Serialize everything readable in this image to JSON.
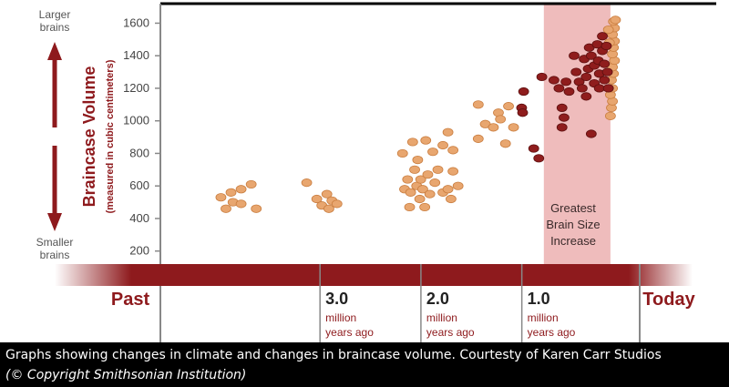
{
  "caption": "Graphs showing changes in climate and changes in braincase volume. Courtesty of Karen Carr Studios",
  "credit": "(© Copyright Smithsonian Institution)",
  "colors": {
    "brain_light": "#e8a66f",
    "brain_light_edge": "#c97d3f",
    "brain_dark": "#8f1d1d",
    "highlight": "#efbcbc",
    "timeline_bar": "#8e1a1d",
    "axis_text": "#8e1a1d",
    "caption_bg": "#000000"
  },
  "chart_data": {
    "type": "scatter",
    "title": "",
    "ylabel": "Braincase Volume",
    "ylabel_sub": "(measured in cubic centimeters)",
    "yticks": [
      200,
      400,
      600,
      800,
      1000,
      1200,
      1400,
      1600
    ],
    "ylim": [
      120,
      1720
    ],
    "xlim": [
      4.6,
      -0.15
    ],
    "x_unit": "million years ago",
    "y_top_label": [
      "Larger",
      "brains"
    ],
    "y_bottom_label": [
      "Smaller",
      "brains"
    ],
    "timeline": {
      "past_label": "Past",
      "today_label": "Today",
      "markers": [
        {
          "value": 3.0,
          "label": "3.0",
          "sub1": "million",
          "sub2": "years ago"
        },
        {
          "value": 2.0,
          "label": "2.0",
          "sub1": "million",
          "sub2": "years ago"
        },
        {
          "value": 1.0,
          "label": "1.0",
          "sub1": "million",
          "sub2": "years ago"
        }
      ]
    },
    "highlight": {
      "x_range": [
        0.8,
        0.14
      ],
      "label": [
        "Greatest",
        "Brain Size",
        "Increase"
      ]
    },
    "grid": false,
    "series": [
      {
        "color_key": "light",
        "points": [
          [
            4.0,
            530
          ],
          [
            3.95,
            460
          ],
          [
            3.9,
            560
          ],
          [
            3.88,
            500
          ],
          [
            3.8,
            580
          ],
          [
            3.8,
            490
          ],
          [
            3.7,
            610
          ],
          [
            3.65,
            460
          ],
          [
            3.15,
            620
          ],
          [
            3.05,
            520
          ],
          [
            3.0,
            480
          ],
          [
            2.95,
            550
          ],
          [
            2.93,
            460
          ],
          [
            2.9,
            510
          ],
          [
            2.85,
            490
          ],
          [
            2.2,
            800
          ],
          [
            2.18,
            580
          ],
          [
            2.15,
            640
          ],
          [
            2.13,
            470
          ],
          [
            2.12,
            560
          ],
          [
            2.1,
            870
          ],
          [
            2.08,
            700
          ],
          [
            2.06,
            600
          ],
          [
            2.05,
            760
          ],
          [
            2.03,
            520
          ],
          [
            2.02,
            640
          ],
          [
            2.0,
            580
          ],
          [
            1.98,
            470
          ],
          [
            1.97,
            880
          ],
          [
            1.95,
            670
          ],
          [
            1.93,
            550
          ],
          [
            1.9,
            810
          ],
          [
            1.88,
            620
          ],
          [
            1.85,
            700
          ],
          [
            1.8,
            850
          ],
          [
            1.8,
            560
          ],
          [
            1.75,
            930
          ],
          [
            1.75,
            580
          ],
          [
            1.72,
            520
          ],
          [
            1.7,
            690
          ],
          [
            1.7,
            820
          ],
          [
            1.65,
            600
          ],
          [
            1.45,
            1100
          ],
          [
            1.45,
            890
          ],
          [
            1.38,
            980
          ],
          [
            1.3,
            960
          ],
          [
            1.25,
            1050
          ],
          [
            1.23,
            1010
          ],
          [
            1.18,
            860
          ],
          [
            1.15,
            1090
          ],
          [
            1.1,
            960
          ],
          [
            0.14,
            1030
          ],
          [
            0.13,
            1080
          ],
          [
            0.12,
            1120
          ],
          [
            0.14,
            1160
          ],
          [
            0.12,
            1200
          ],
          [
            0.13,
            1250
          ],
          [
            0.11,
            1290
          ],
          [
            0.12,
            1330
          ],
          [
            0.1,
            1370
          ],
          [
            0.12,
            1410
          ],
          [
            0.11,
            1450
          ],
          [
            0.1,
            1490
          ],
          [
            0.12,
            1530
          ],
          [
            0.1,
            1570
          ],
          [
            0.11,
            1610
          ],
          [
            0.09,
            1620
          ],
          [
            0.16,
            1560
          ],
          [
            0.15,
            1480
          ]
        ]
      },
      {
        "color_key": "dark",
        "points": [
          [
            1.0,
            1180
          ],
          [
            1.02,
            1080
          ],
          [
            1.01,
            1050
          ],
          [
            0.9,
            830
          ],
          [
            0.85,
            770
          ],
          [
            0.82,
            1270
          ],
          [
            0.7,
            1250
          ],
          [
            0.65,
            1200
          ],
          [
            0.62,
            1080
          ],
          [
            0.6,
            1020
          ],
          [
            0.62,
            960
          ],
          [
            0.58,
            1240
          ],
          [
            0.55,
            1180
          ],
          [
            0.5,
            1400
          ],
          [
            0.48,
            1300
          ],
          [
            0.45,
            1240
          ],
          [
            0.42,
            1200
          ],
          [
            0.4,
            1380
          ],
          [
            0.38,
            1270
          ],
          [
            0.38,
            1150
          ],
          [
            0.36,
            1320
          ],
          [
            0.35,
            1450
          ],
          [
            0.33,
            1400
          ],
          [
            0.33,
            920
          ],
          [
            0.3,
            1340
          ],
          [
            0.3,
            1230
          ],
          [
            0.27,
            1470
          ],
          [
            0.26,
            1370
          ],
          [
            0.25,
            1290
          ],
          [
            0.25,
            1200
          ],
          [
            0.22,
            1430
          ],
          [
            0.22,
            1520
          ],
          [
            0.2,
            1350
          ],
          [
            0.2,
            1250
          ],
          [
            0.18,
            1460
          ],
          [
            0.17,
            1300
          ],
          [
            0.16,
            1200
          ]
        ]
      }
    ]
  }
}
